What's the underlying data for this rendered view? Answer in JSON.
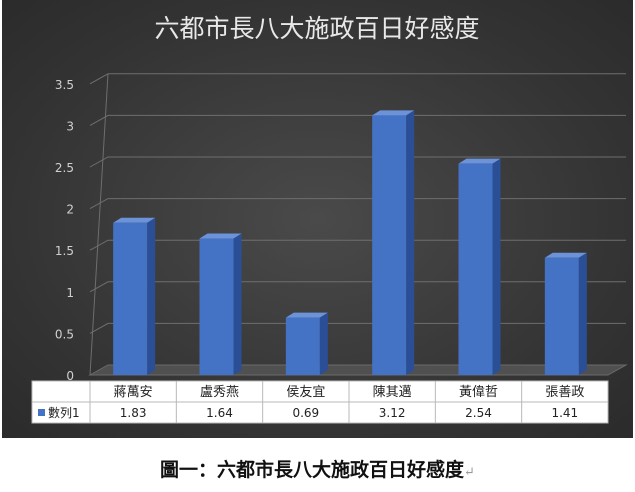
{
  "chart_data": {
    "type": "bar",
    "title": "六都市長八大施政百日好感度",
    "categories": [
      "蔣萬安",
      "盧秀燕",
      "侯友宜",
      "陳其邁",
      "黃偉哲",
      "張善政"
    ],
    "series": [
      {
        "name": "數列1",
        "values": [
          1.83,
          1.64,
          0.69,
          3.12,
          2.54,
          1.41
        ]
      }
    ],
    "value_labels": [
      "1.83",
      "1.64",
      "0.69",
      "3.12",
      "2.54",
      "1.41"
    ],
    "y_ticks": [
      "0",
      "0.5",
      "1",
      "1.5",
      "2",
      "2.5",
      "3",
      "3.5"
    ],
    "ylim": [
      0,
      3.5
    ],
    "grid": true,
    "data_table": true,
    "legend": "data-table",
    "colors": {
      "bar": "#4472c4",
      "bar_side": "#2a4f96",
      "bar_top": "#6c93da",
      "background": "#383838"
    }
  },
  "caption": {
    "text": "圖一：六都市長八大施政百日好感度",
    "return_mark": "↵"
  }
}
